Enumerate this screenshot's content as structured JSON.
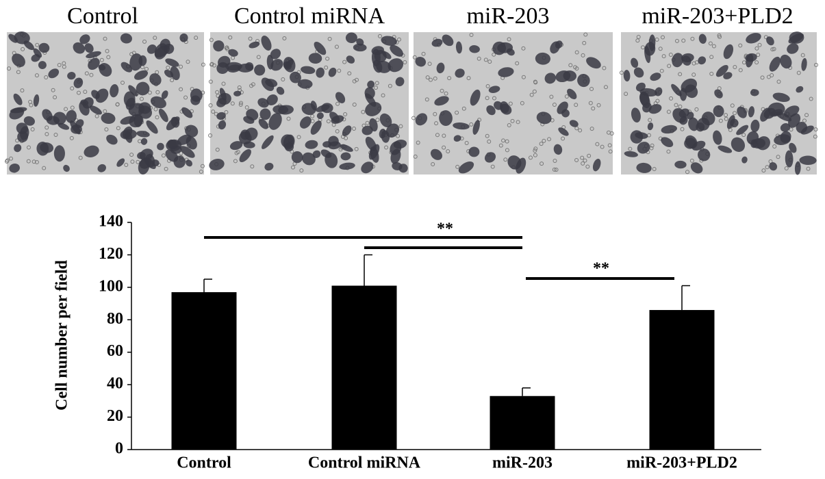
{
  "image_labels": [
    "Control",
    "Control miRNA",
    "miR-203",
    "miR-203+PLD2"
  ],
  "chart_data": {
    "type": "bar",
    "ylabel": "Cell number per field",
    "categories": [
      "Control",
      "Control miRNA",
      "miR-203",
      "miR-203+PLD2"
    ],
    "values": [
      97,
      101,
      33,
      86
    ],
    "errors": [
      8,
      19,
      5,
      15
    ],
    "color": "#000000",
    "ylim": [
      0,
      140
    ],
    "yticks": [
      0,
      20,
      40,
      60,
      80,
      100,
      120,
      140
    ],
    "annotations": [
      "**",
      "**"
    ]
  }
}
